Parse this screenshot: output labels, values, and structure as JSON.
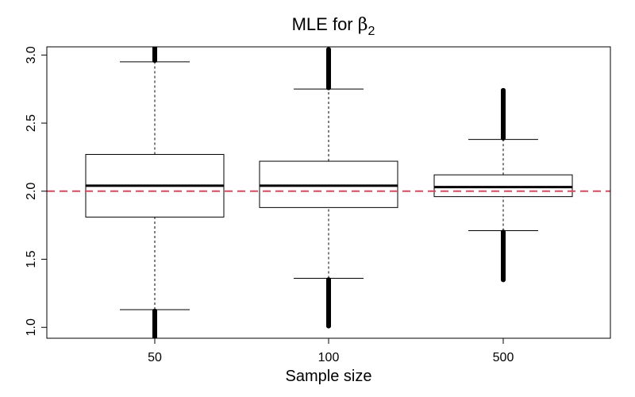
{
  "chart_data": {
    "type": "boxplot",
    "title_main": "MLE for ",
    "title_symbol": "β",
    "title_subscript": "2",
    "xlabel": "Sample size",
    "ylabel": "",
    "categories": [
      "50",
      "100",
      "500"
    ],
    "ylim": [
      0.92,
      3.06
    ],
    "yticks": [
      "1.0",
      "1.5",
      "2.0",
      "2.5",
      "3.0"
    ],
    "reference_line": {
      "value": 2.0,
      "color": "#d9485f",
      "style": "dashed"
    },
    "grid": false,
    "series": [
      {
        "category": "50",
        "whisker_low": 1.13,
        "q1": 1.81,
        "median": 2.04,
        "q3": 2.27,
        "whisker_high": 2.95,
        "outliers_low": [
          0.93,
          1.12
        ],
        "outliers_high": [
          2.96,
          3.06
        ]
      },
      {
        "category": "100",
        "whisker_low": 1.36,
        "q1": 1.88,
        "median": 2.04,
        "q3": 2.22,
        "whisker_high": 2.75,
        "outliers_low": [
          1.01,
          1.35
        ],
        "outliers_high": [
          2.76,
          3.04
        ]
      },
      {
        "category": "500",
        "whisker_low": 1.71,
        "q1": 1.96,
        "median": 2.03,
        "q3": 2.12,
        "whisker_high": 2.38,
        "outliers_low": [
          1.35,
          1.7
        ],
        "outliers_high": [
          2.39,
          2.74
        ]
      }
    ]
  }
}
